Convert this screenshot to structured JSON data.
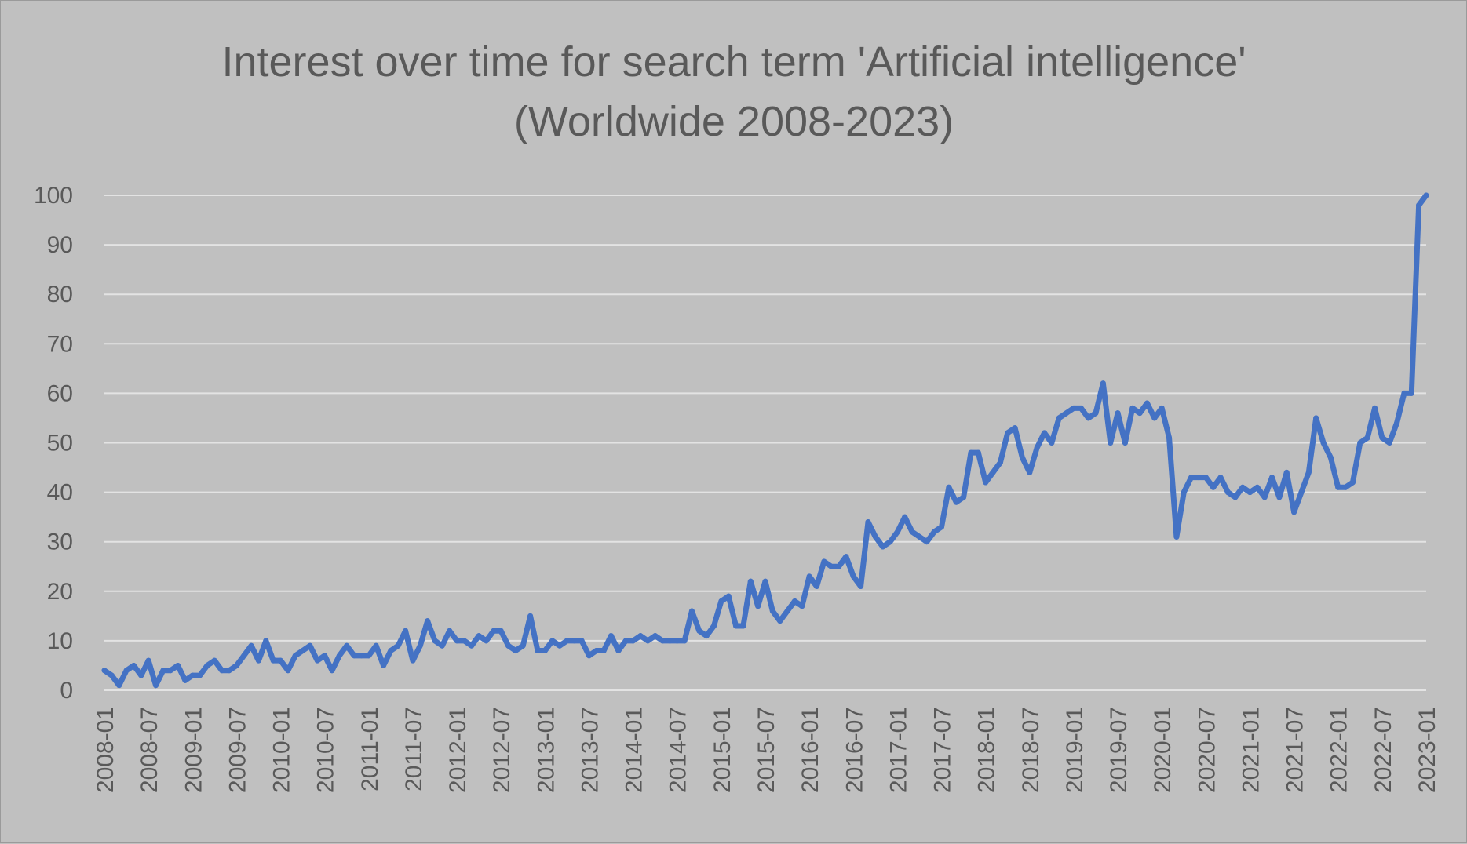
{
  "chart_data": {
    "type": "line",
    "title": "Interest over time for search term 'Artificial intelligence'",
    "subtitle": "(Worldwide 2008-2023)",
    "xlabel": "",
    "ylabel": "",
    "ylim": [
      0,
      100
    ],
    "y_ticks": [
      "0",
      "10",
      "20",
      "30",
      "40",
      "50",
      "60",
      "70",
      "80",
      "90",
      "100"
    ],
    "x_ticks": [
      "2008-01",
      "2008-07",
      "2009-01",
      "2009-07",
      "2010-01",
      "2010-07",
      "2011-01",
      "2011-07",
      "2012-01",
      "2012-07",
      "2013-01",
      "2013-07",
      "2014-01",
      "2014-07",
      "2015-01",
      "2015-07",
      "2016-01",
      "2016-07",
      "2017-01",
      "2017-07",
      "2018-01",
      "2018-07",
      "2019-01",
      "2019-07",
      "2020-01",
      "2020-07",
      "2021-01",
      "2021-07",
      "2022-01",
      "2022-07",
      "2023-01"
    ],
    "grid": true,
    "legend": "none",
    "series": [
      {
        "color": "#4472c4",
        "x_start": "2008-01",
        "frequency": "monthly",
        "values": [
          4,
          3,
          1,
          4,
          5,
          3,
          6,
          1,
          4,
          4,
          5,
          2,
          3,
          3,
          5,
          6,
          4,
          4,
          5,
          7,
          9,
          6,
          10,
          6,
          6,
          4,
          7,
          8,
          9,
          6,
          7,
          4,
          7,
          9,
          7,
          7,
          7,
          9,
          5,
          8,
          9,
          12,
          6,
          9,
          14,
          10,
          9,
          12,
          10,
          10,
          9,
          11,
          10,
          12,
          12,
          9,
          8,
          9,
          15,
          8,
          8,
          10,
          9,
          10,
          10,
          10,
          7,
          8,
          8,
          11,
          8,
          10,
          10,
          11,
          10,
          11,
          10,
          10,
          10,
          10,
          16,
          12,
          11,
          13,
          18,
          19,
          13,
          13,
          22,
          17,
          22,
          16,
          14,
          16,
          18,
          17,
          23,
          21,
          26,
          25,
          25,
          27,
          23,
          21,
          34,
          31,
          29,
          30,
          32,
          35,
          32,
          31,
          30,
          32,
          33,
          41,
          38,
          39,
          48,
          48,
          42,
          44,
          46,
          52,
          53,
          47,
          44,
          49,
          52,
          50,
          55,
          56,
          57,
          57,
          55,
          56,
          62,
          50,
          56,
          50,
          57,
          56,
          58,
          55,
          57,
          51,
          31,
          40,
          43,
          43,
          43,
          41,
          43,
          40,
          39,
          41,
          40,
          41,
          39,
          43,
          39,
          44,
          36,
          40,
          44,
          55,
          50,
          47,
          41,
          41,
          42,
          50,
          51,
          57,
          51,
          50,
          54,
          60,
          60,
          98,
          100
        ]
      }
    ]
  }
}
